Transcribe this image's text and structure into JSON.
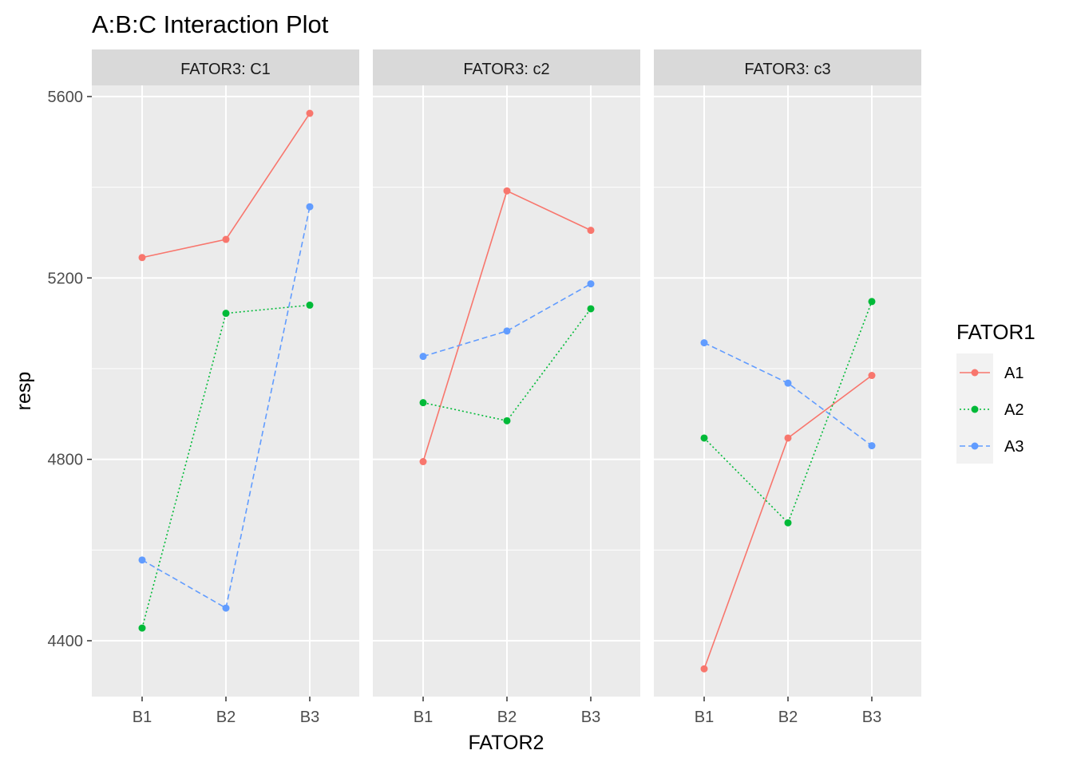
{
  "chart_data": {
    "type": "line",
    "title": "A:B:C Interaction Plot",
    "xlabel": "FATOR2",
    "ylabel": "resp",
    "categories": [
      "B1",
      "B2",
      "B3"
    ],
    "ylim": [
      4280,
      5700
    ],
    "yticks": [
      4400,
      4800,
      5200,
      5600
    ],
    "grid": true,
    "legend": {
      "title": "FATOR1",
      "placement": "right"
    },
    "facets": [
      {
        "label": "FATOR3: C1",
        "series": [
          {
            "name": "A1",
            "values": [
              5245,
              5285,
              5563
            ]
          },
          {
            "name": "A2",
            "values": [
              4428,
              5122,
              5140
            ]
          },
          {
            "name": "A3",
            "values": [
              4578,
              4472,
              5357
            ]
          }
        ]
      },
      {
        "label": "FATOR3: c2",
        "series": [
          {
            "name": "A1",
            "values": [
              4795,
              5392,
              5305
            ]
          },
          {
            "name": "A2",
            "values": [
              4925,
              4885,
              5132
            ]
          },
          {
            "name": "A3",
            "values": [
              5027,
              5083,
              5187
            ]
          }
        ]
      },
      {
        "label": "FATOR3: c3",
        "series": [
          {
            "name": "A1",
            "values": [
              4338,
              4847,
              4985
            ]
          },
          {
            "name": "A2",
            "values": [
              4847,
              4660,
              5148
            ]
          },
          {
            "name": "A3",
            "values": [
              5057,
              4968,
              4830
            ]
          }
        ]
      }
    ],
    "series_styles": [
      {
        "name": "A1",
        "color": "#F8766D",
        "linetype": "solid"
      },
      {
        "name": "A2",
        "color": "#00BA38",
        "linetype": "dotted"
      },
      {
        "name": "A3",
        "color": "#619CFF",
        "linetype": "dashed"
      }
    ]
  }
}
